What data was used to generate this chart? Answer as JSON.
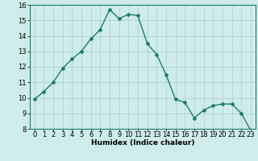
{
  "xlabel": "Humidex (Indice chaleur)",
  "x": [
    0,
    1,
    2,
    3,
    4,
    5,
    6,
    7,
    8,
    9,
    10,
    11,
    12,
    13,
    14,
    15,
    16,
    17,
    18,
    19,
    20,
    21,
    22,
    23
  ],
  "y": [
    9.9,
    10.4,
    11.0,
    11.9,
    12.5,
    13.0,
    13.8,
    14.4,
    15.7,
    15.1,
    15.4,
    15.3,
    13.5,
    12.8,
    11.5,
    9.9,
    9.7,
    8.7,
    9.2,
    9.5,
    9.6,
    9.6,
    9.0,
    7.9
  ],
  "line_color": "#1e7b6e",
  "marker": "D",
  "marker_size": 2,
  "line_width": 1.0,
  "bg_color": "#ceecea",
  "grid_color": "#aed4d0",
  "ylim": [
    8,
    16
  ],
  "xlim": [
    -0.5,
    23.5
  ],
  "yticks": [
    8,
    9,
    10,
    11,
    12,
    13,
    14,
    15,
    16
  ],
  "xticks": [
    0,
    1,
    2,
    3,
    4,
    5,
    6,
    7,
    8,
    9,
    10,
    11,
    12,
    13,
    14,
    15,
    16,
    17,
    18,
    19,
    20,
    21,
    22,
    23
  ],
  "label_fontsize": 6.5,
  "tick_fontsize": 6.0
}
